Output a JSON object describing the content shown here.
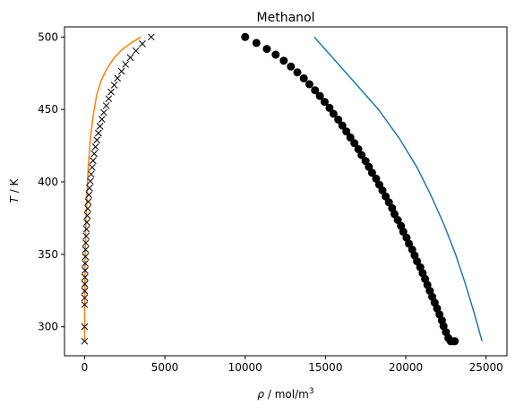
{
  "chart_data": {
    "type": "scatter",
    "title": "Methanol",
    "xlabel": {
      "symbol": "ρ",
      "unit": " / mol/m",
      "exp": "3"
    },
    "ylabel": {
      "symbol": "T",
      "unit": " / K"
    },
    "xlim": [
      -1250,
      26300
    ],
    "ylim": [
      280,
      507
    ],
    "xticks": [
      0,
      5000,
      10000,
      15000,
      20000,
      25000
    ],
    "yticks": [
      300,
      350,
      400,
      450,
      500
    ],
    "grid": false,
    "series": [
      {
        "kind": "line",
        "color": "#1f77b4",
        "x": [
          24750,
          24250,
          23700,
          23100,
          22400,
          21600,
          20700,
          19600,
          18300,
          16700,
          14300
        ],
        "y": [
          290,
          310,
          330,
          350,
          370,
          390,
          410,
          430,
          450,
          470,
          500
        ]
      },
      {
        "kind": "line",
        "color": "#ff7f0e",
        "x": [
          0,
          5,
          15,
          40,
          80,
          140,
          230,
          360,
          530,
          750,
          1030,
          1380,
          1800,
          2300,
          2900,
          3500
        ],
        "y": [
          290,
          310,
          330,
          350,
          370,
          390,
          410,
          430,
          445,
          460,
          470,
          478,
          485,
          491,
          496,
          500
        ]
      },
      {
        "kind": "markers",
        "marker": "circle",
        "color": "#000000",
        "x": [
          10000,
          10700,
          11350,
          11900,
          12400,
          12850,
          13250,
          13650,
          14000,
          14350,
          14650,
          14950,
          15250,
          15500,
          15800,
          16050,
          16300,
          16550,
          16800,
          17050,
          17250,
          17500,
          17700,
          17900,
          18150,
          18350,
          18550,
          18750,
          18950,
          19150,
          19300,
          19500,
          19700,
          19850,
          20050,
          20200,
          20400,
          20550,
          20700,
          20900,
          21050,
          21200,
          21350,
          21500,
          21650,
          21800,
          21950,
          22100,
          22250,
          22350,
          22500,
          22650,
          22800,
          22900,
          23050
        ],
        "y": [
          500,
          495.9,
          491.8,
          487.8,
          483.7,
          479.6,
          475.6,
          471.5,
          467.4,
          463.3,
          459.3,
          455.2,
          451.1,
          447.0,
          443.0,
          438.9,
          434.8,
          430.7,
          426.7,
          422.6,
          418.5,
          414.4,
          410.4,
          406.3,
          402.2,
          398.1,
          394.1,
          390.0,
          385.9,
          381.9,
          377.8,
          373.7,
          369.6,
          365.6,
          361.5,
          357.4,
          353.3,
          349.3,
          345.2,
          341.1,
          337.0,
          333.0,
          328.9,
          324.8,
          320.7,
          316.7,
          312.6,
          308.5,
          304.4,
          300.4,
          296.3,
          292.2,
          290.0,
          290.0,
          290.0
        ]
      },
      {
        "kind": "markers",
        "marker": "x",
        "color": "#000000",
        "x": [
          4150,
          3600,
          3200,
          2850,
          2550,
          2300,
          2050,
          1850,
          1650,
          1500,
          1350,
          1200,
          1080,
          960,
          860,
          770,
          680,
          600,
          530,
          470,
          410,
          360,
          310,
          270,
          230,
          200,
          170,
          140,
          120,
          100,
          80,
          65,
          50,
          40,
          30,
          22,
          15,
          10,
          6,
          3,
          1,
          0
        ],
        "y": [
          500,
          495.3,
          490.5,
          485.8,
          481.1,
          476.3,
          471.6,
          466.8,
          462.1,
          457.4,
          452.6,
          447.9,
          443.2,
          438.4,
          433.7,
          428.9,
          424.2,
          419.5,
          414.7,
          410.0,
          405.3,
          400.5,
          395.8,
          391.1,
          386.3,
          381.6,
          376.8,
          372.1,
          367.4,
          362.6,
          357.9,
          353.2,
          348.4,
          343.7,
          338.9,
          334.2,
          329.5,
          324.7,
          320.0,
          315.3,
          300.0,
          290.0
        ]
      }
    ]
  }
}
